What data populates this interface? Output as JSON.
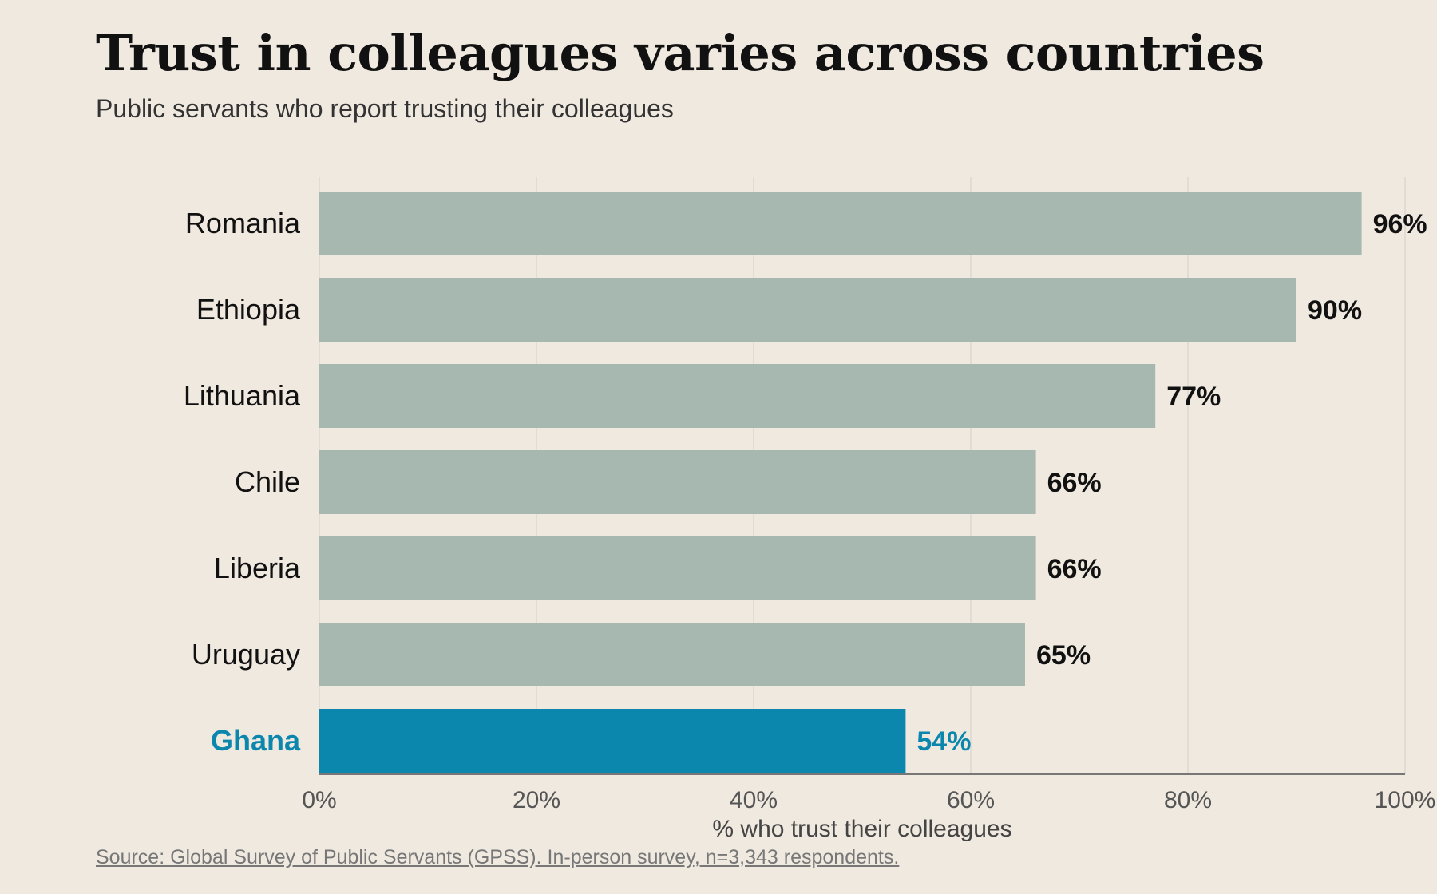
{
  "title": "Trust in colleagues varies across countries",
  "subtitle": "Public servants who report trusting their colleagues",
  "source": "Source: Global Survey of Public Servants (GPSS). In-person survey, n=3,343 respondents.",
  "colors": {
    "background": "#f0e9e0",
    "bar_default": "#a7b8b1",
    "bar_highlight": "#0b86ad",
    "label_default": "#111111",
    "label_highlight": "#0b86ad",
    "grid": "#dcd8d0",
    "axis": "#777777"
  },
  "chart_data": {
    "type": "bar",
    "orientation": "horizontal",
    "categories": [
      "Romania",
      "Ethiopia",
      "Lithuania",
      "Chile",
      "Liberia",
      "Uruguay",
      "Ghana"
    ],
    "values": [
      96,
      90,
      77,
      66,
      66,
      65,
      54
    ],
    "value_labels": [
      "96%",
      "90%",
      "77%",
      "66%",
      "66%",
      "65%",
      "54%"
    ],
    "highlight": "Ghana",
    "xlabel": "% who trust their colleagues",
    "ylabel": "",
    "xlim": [
      0,
      100
    ],
    "xticks": [
      0,
      20,
      40,
      60,
      80,
      100
    ],
    "xtick_labels": [
      "0%",
      "20%",
      "40%",
      "60%",
      "80%",
      "100%"
    ],
    "grid": true,
    "legend": "none"
  }
}
